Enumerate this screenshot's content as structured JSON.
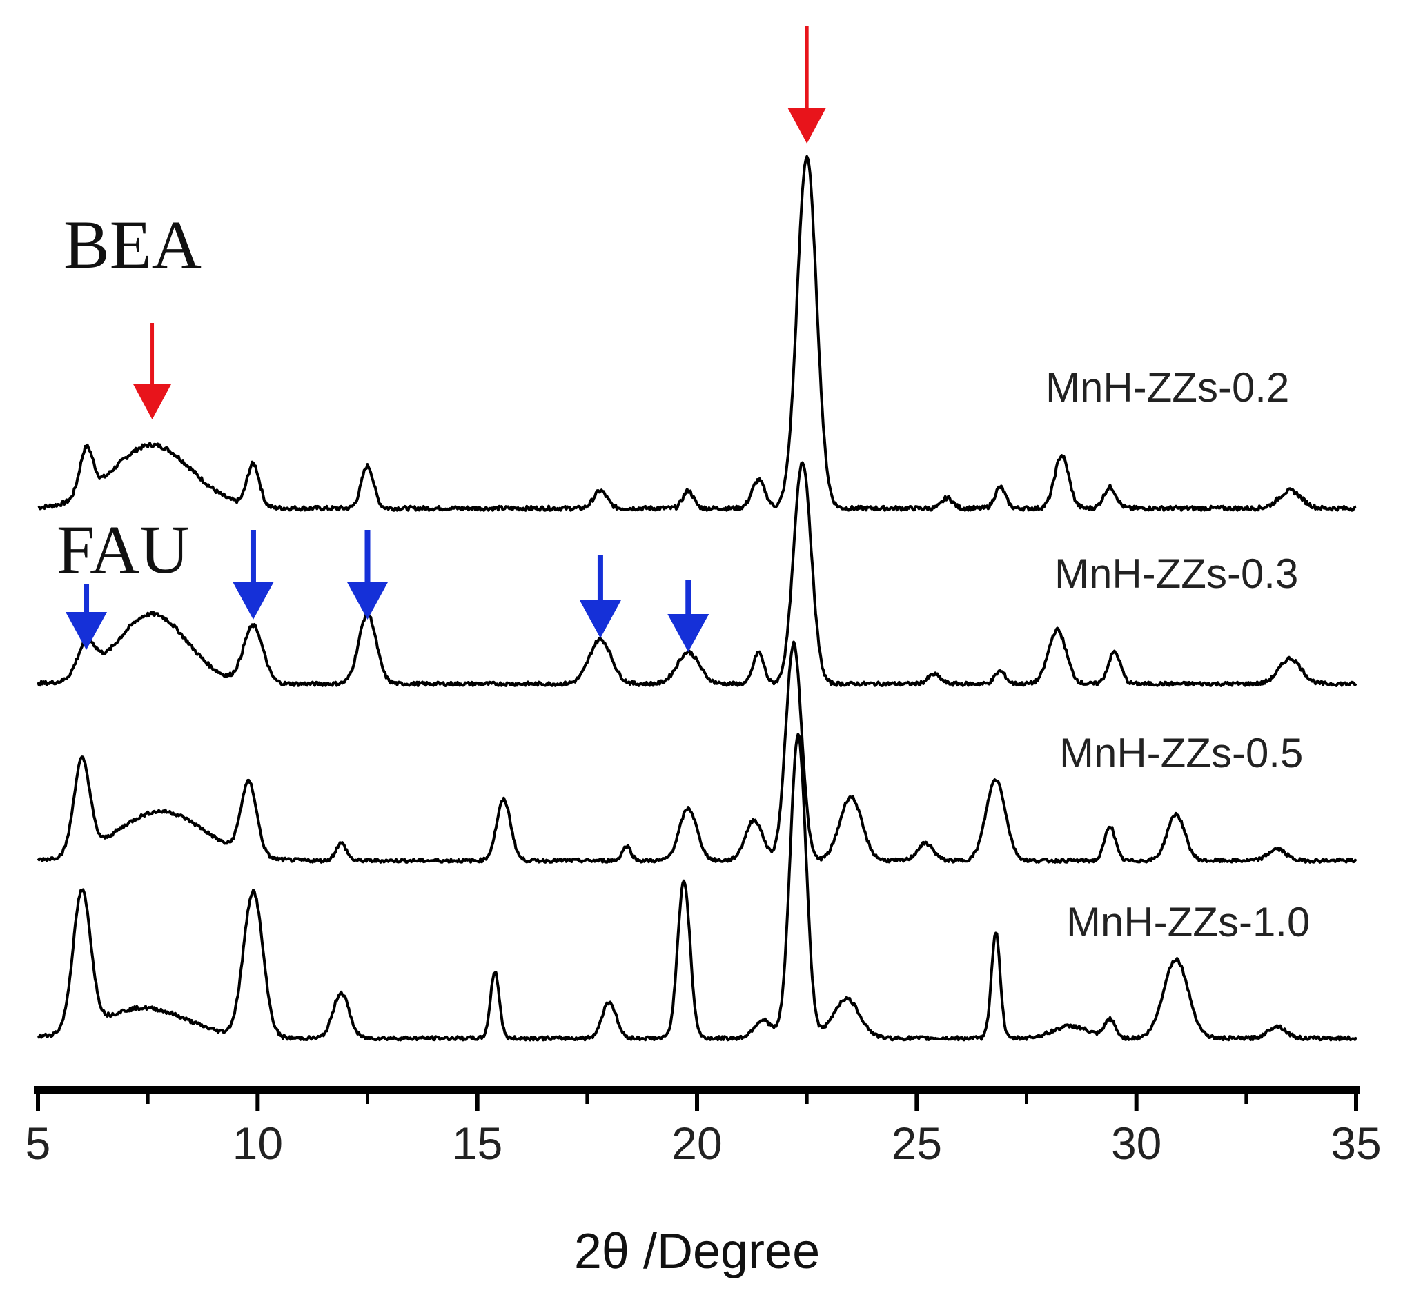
{
  "chart_data": {
    "type": "line",
    "xlabel": "2θ /Degree",
    "ylabel": "",
    "xlim": [
      5,
      35
    ],
    "xticks": [
      5,
      10,
      15,
      20,
      25,
      30,
      35
    ],
    "grid": false,
    "phase_labels": [
      {
        "text": "BEA",
        "arrow_color": "#e8141b",
        "marked_peaks": [
          7.6,
          22.5
        ]
      },
      {
        "text": "FAU",
        "arrow_color": "#1530d8",
        "marked_peaks": [
          6.1,
          9.9,
          12.5,
          17.8,
          19.8
        ]
      }
    ],
    "series": [
      {
        "name": "MnH-ZZs-0.2",
        "baseline": 0.03,
        "peaks": [
          [
            6.1,
            0.13,
            0.15
          ],
          [
            7.6,
            0.18,
            0.9
          ],
          [
            9.9,
            0.12,
            0.14
          ],
          [
            12.5,
            0.12,
            0.14
          ],
          [
            17.8,
            0.05,
            0.15
          ],
          [
            19.8,
            0.05,
            0.12
          ],
          [
            21.4,
            0.08,
            0.15
          ],
          [
            22.5,
            1.0,
            0.22
          ],
          [
            25.7,
            0.03,
            0.12
          ],
          [
            26.9,
            0.06,
            0.12
          ],
          [
            28.3,
            0.15,
            0.16
          ],
          [
            29.4,
            0.06,
            0.14
          ],
          [
            33.5,
            0.05,
            0.25
          ]
        ]
      },
      {
        "name": "MnH-ZZs-0.3",
        "baseline": 0.03,
        "peaks": [
          [
            6.1,
            0.1,
            0.2
          ],
          [
            7.6,
            0.22,
            0.8
          ],
          [
            9.9,
            0.18,
            0.22
          ],
          [
            12.5,
            0.22,
            0.2
          ],
          [
            17.8,
            0.14,
            0.25
          ],
          [
            19.8,
            0.1,
            0.25
          ],
          [
            21.4,
            0.1,
            0.12
          ],
          [
            22.4,
            0.7,
            0.2
          ],
          [
            25.4,
            0.03,
            0.14
          ],
          [
            26.9,
            0.04,
            0.12
          ],
          [
            28.2,
            0.17,
            0.2
          ],
          [
            29.5,
            0.1,
            0.14
          ],
          [
            33.5,
            0.08,
            0.25
          ]
        ]
      },
      {
        "name": "MnH-ZZs-0.5",
        "baseline": 0.03,
        "peaks": [
          [
            6.0,
            0.32,
            0.18
          ],
          [
            7.8,
            0.17,
            1.0
          ],
          [
            9.8,
            0.25,
            0.18
          ],
          [
            11.9,
            0.06,
            0.12
          ],
          [
            15.6,
            0.21,
            0.16
          ],
          [
            18.4,
            0.05,
            0.1
          ],
          [
            19.8,
            0.18,
            0.2
          ],
          [
            21.3,
            0.14,
            0.2
          ],
          [
            22.2,
            0.75,
            0.18
          ],
          [
            23.5,
            0.22,
            0.25
          ],
          [
            25.2,
            0.06,
            0.18
          ],
          [
            26.8,
            0.28,
            0.22
          ],
          [
            29.4,
            0.12,
            0.12
          ],
          [
            30.9,
            0.16,
            0.2
          ],
          [
            33.2,
            0.04,
            0.2
          ]
        ]
      },
      {
        "name": "MnH-ZZs-1.0",
        "baseline": 0.03,
        "peaks": [
          [
            6.0,
            0.45,
            0.2
          ],
          [
            7.4,
            0.1,
            1.0
          ],
          [
            9.9,
            0.48,
            0.22
          ],
          [
            11.9,
            0.15,
            0.18
          ],
          [
            15.4,
            0.22,
            0.1
          ],
          [
            18.0,
            0.12,
            0.16
          ],
          [
            19.7,
            0.52,
            0.14
          ],
          [
            21.5,
            0.06,
            0.2
          ],
          [
            22.3,
            1.0,
            0.18
          ],
          [
            23.4,
            0.13,
            0.3
          ],
          [
            26.8,
            0.35,
            0.1
          ],
          [
            28.5,
            0.04,
            0.4
          ],
          [
            29.4,
            0.06,
            0.12
          ],
          [
            30.9,
            0.26,
            0.28
          ],
          [
            33.2,
            0.04,
            0.2
          ]
        ]
      }
    ]
  }
}
